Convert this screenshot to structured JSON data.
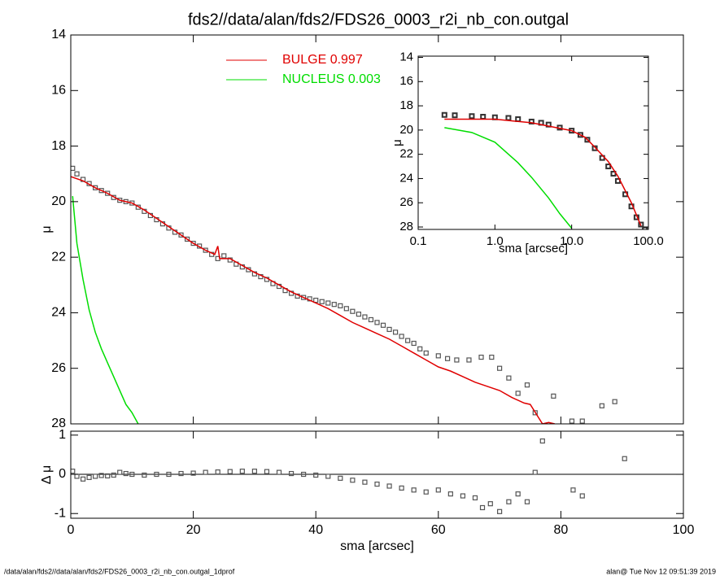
{
  "footer": {
    "left": "/data/alan/fds2//data/alan/fds2/FDS26_0003_r2i_nb_con.outgal_1dprof",
    "right": "alan@  Tue Nov 12 09:51:39 2019"
  },
  "chart_data": [
    {
      "type": "line",
      "title": "fds2//data/alan/fds2/FDS26_0003_r2i_nb_con.outgal",
      "ylabel": "μ",
      "xlim": [
        0,
        100
      ],
      "xticks": [
        0,
        20,
        40,
        60,
        80,
        100
      ],
      "ylim": [
        28,
        14
      ],
      "yticks": [
        14,
        16,
        18,
        20,
        22,
        24,
        26,
        28
      ],
      "legend": "top",
      "series": [
        {
          "style": "markers",
          "color": "#555555",
          "x": [
            0.3,
            1,
            2,
            3,
            4,
            5,
            6,
            7,
            8,
            9,
            10,
            11,
            12,
            13,
            14,
            15,
            16,
            17,
            18,
            19,
            20,
            21,
            22,
            23,
            24,
            25,
            26,
            27,
            28,
            29,
            30,
            31,
            32,
            33,
            34,
            35,
            36,
            37,
            38,
            39,
            40,
            41,
            42,
            43,
            44,
            45,
            46,
            47,
            48,
            49,
            50,
            51,
            52,
            53,
            54,
            55,
            56,
            57,
            58,
            60,
            61.5,
            63,
            65,
            67,
            68.7,
            70,
            71.5,
            73,
            74.5,
            75.8,
            78.8,
            81.8,
            83.5,
            86.7,
            88.8
          ],
          "values": [
            18.8,
            19.0,
            19.2,
            19.35,
            19.5,
            19.6,
            19.7,
            19.85,
            19.95,
            20.0,
            20.05,
            20.2,
            20.35,
            20.5,
            20.65,
            20.8,
            20.95,
            21.1,
            21.2,
            21.35,
            21.5,
            21.6,
            21.75,
            21.9,
            22.05,
            21.95,
            22.1,
            22.25,
            22.35,
            22.45,
            22.6,
            22.7,
            22.8,
            22.95,
            23.05,
            23.2,
            23.3,
            23.4,
            23.45,
            23.5,
            23.55,
            23.6,
            23.65,
            23.7,
            23.75,
            23.85,
            23.95,
            24.05,
            24.15,
            24.25,
            24.35,
            24.45,
            24.6,
            24.7,
            24.85,
            25.0,
            25.1,
            25.3,
            25.45,
            25.55,
            25.65,
            25.7,
            25.7,
            25.6,
            25.6,
            26.0,
            26.35,
            26.9,
            26.6,
            27.6,
            27.0,
            27.9,
            27.9,
            27.35,
            27.2
          ]
        },
        {
          "style": "line",
          "name": "BULGE  0.997",
          "color": "#e00000",
          "x": [
            0,
            2,
            4,
            6,
            8,
            10,
            12,
            14,
            16,
            18,
            20,
            22,
            23.5,
            24,
            24.3,
            26,
            28,
            30,
            32,
            34,
            36,
            38,
            40,
            42,
            44,
            46,
            48,
            50,
            52,
            54,
            56,
            58,
            60,
            62,
            64,
            66,
            68,
            70,
            72,
            74,
            75,
            77,
            78,
            79
          ],
          "values": [
            19.1,
            19.25,
            19.5,
            19.7,
            19.95,
            20.05,
            20.3,
            20.6,
            20.9,
            21.2,
            21.5,
            21.75,
            21.9,
            21.6,
            22.05,
            22.05,
            22.3,
            22.55,
            22.75,
            23.0,
            23.25,
            23.45,
            23.65,
            23.85,
            24.1,
            24.35,
            24.55,
            24.75,
            24.95,
            25.2,
            25.45,
            25.7,
            25.95,
            26.1,
            26.3,
            26.5,
            26.65,
            26.8,
            27.05,
            27.25,
            27.3,
            28.0,
            27.95,
            28.0
          ]
        },
        {
          "style": "line",
          "name": "NUCLEUS  0.003",
          "color": "#00dd00",
          "x": [
            0.3,
            1,
            2,
            3,
            4,
            5,
            6,
            7,
            8,
            9,
            10,
            11
          ],
          "values": [
            19.8,
            21.5,
            22.8,
            23.9,
            24.7,
            25.3,
            25.8,
            26.3,
            26.8,
            27.3,
            27.6,
            28.0
          ]
        }
      ]
    },
    {
      "type": "line",
      "xlabel": "sma [arcsec]",
      "ylabel": "Δ μ",
      "xlim": [
        0,
        100
      ],
      "xticks": [
        0,
        20,
        40,
        60,
        80,
        100
      ],
      "ylim": [
        -1.12,
        1.1
      ],
      "yticks": [
        -1,
        0,
        1
      ],
      "zero_line": true,
      "series": [
        {
          "style": "markers",
          "color": "#555555",
          "x": [
            0.3,
            1,
            2,
            3,
            4,
            5,
            6,
            7,
            8,
            9,
            10,
            12,
            14,
            16,
            18,
            20,
            22,
            24,
            26,
            28,
            30,
            32,
            34,
            36,
            38,
            40,
            42,
            44,
            46,
            48,
            50,
            52,
            54,
            56,
            58,
            60,
            62,
            64,
            66,
            67.2,
            68.5,
            70,
            71.5,
            73,
            74.5,
            75.8,
            77,
            82,
            83.5,
            90.4
          ],
          "values": [
            0.08,
            -0.05,
            -0.12,
            -0.08,
            -0.05,
            -0.03,
            -0.04,
            -0.02,
            0.05,
            0.02,
            0.0,
            -0.02,
            0.0,
            0.0,
            0.02,
            0.03,
            0.05,
            0.06,
            0.07,
            0.08,
            0.08,
            0.07,
            0.05,
            0.02,
            0.0,
            -0.02,
            -0.05,
            -0.1,
            -0.15,
            -0.2,
            -0.25,
            -0.3,
            -0.35,
            -0.4,
            -0.45,
            -0.4,
            -0.5,
            -0.55,
            -0.6,
            -0.85,
            -0.75,
            -0.95,
            -0.7,
            -0.5,
            -0.7,
            0.05,
            0.85,
            -0.4,
            -0.55,
            0.4
          ]
        }
      ]
    },
    {
      "type": "line",
      "xlabel": "sma [arcsec]",
      "ylabel": "μ",
      "xscale": "log",
      "xlim": [
        0.1,
        100
      ],
      "xticks": [
        0.1,
        {
          "value": 1,
          "label": "1.0"
        },
        {
          "value": 10,
          "label": "10.0"
        },
        {
          "value": 100,
          "label": "100.0"
        }
      ],
      "ylim": [
        28.2,
        13.9
      ],
      "yticks": [
        14,
        16,
        18,
        20,
        22,
        24,
        26,
        28
      ],
      "series": [
        {
          "style": "markers",
          "color": "#333333",
          "x": [
            0.22,
            0.3,
            0.5,
            0.7,
            1,
            1.5,
            2,
            3,
            4,
            5,
            7,
            10,
            13,
            16,
            20,
            25,
            30,
            35,
            40,
            50,
            60,
            70,
            80,
            90
          ],
          "values": [
            18.75,
            18.78,
            18.85,
            18.9,
            18.95,
            19.0,
            19.1,
            19.3,
            19.4,
            19.55,
            19.8,
            20.05,
            20.4,
            20.8,
            21.5,
            22.3,
            23.0,
            23.6,
            24.2,
            25.3,
            26.3,
            27.2,
            27.8,
            28.2
          ]
        },
        {
          "style": "line",
          "color": "#e00000",
          "x": [
            0.22,
            1,
            3,
            10,
            15,
            20,
            30,
            40,
            60,
            80
          ],
          "values": [
            19.1,
            19.1,
            19.4,
            20.05,
            20.6,
            21.4,
            22.6,
            23.8,
            26.0,
            27.9
          ]
        },
        {
          "style": "line",
          "color": "#00dd00",
          "x": [
            0.22,
            0.5,
            1,
            2,
            3,
            5,
            7,
            10
          ],
          "values": [
            19.8,
            20.2,
            21.0,
            22.7,
            23.9,
            25.6,
            26.9,
            28.1
          ]
        }
      ]
    }
  ]
}
